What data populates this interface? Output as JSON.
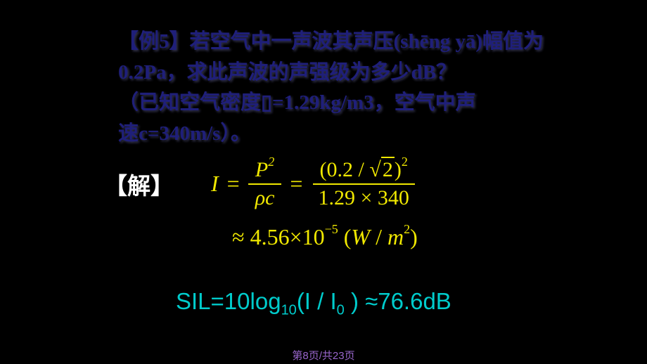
{
  "problem": {
    "line1": "【例5】若空气中一声波其声压(shēng yā)幅值为",
    "line2": "0.2Pa，求此声波的声强级为多少dB？",
    "line3": "（已知空气密度▯=1.29kg/m3，空气中声",
    "line4": "速c=340m/s）。"
  },
  "solution": {
    "label": "【解】",
    "intensity_symbol": "I",
    "equals": "=",
    "P_squared": "P",
    "P_exp": "2",
    "rho_c": "ρc",
    "numerator_val": "0.2",
    "sqrt_val": "2",
    "num_exp": "2",
    "denom_1": "1.29",
    "denom_2": "340",
    "approx": "≈",
    "result_coef": "4.56",
    "result_times": "×",
    "result_base": "10",
    "result_exp": "−5",
    "result_unit_W": "W",
    "result_unit_m": "m",
    "result_unit_exp": "2"
  },
  "sil": {
    "prefix": "SIL=10log",
    "log_sub": "10",
    "mid": "(I / I",
    "i_sub": "0",
    "suffix": " ) ≈76.6dB"
  },
  "footer": {
    "page": "第8页/共23页"
  },
  "colors": {
    "background": "#000000",
    "problem_text": "#1f1f7a",
    "solution_label": "#ffffff",
    "equation": "#f0e800",
    "sil": "#00cccc",
    "footer": "#9966cc"
  }
}
